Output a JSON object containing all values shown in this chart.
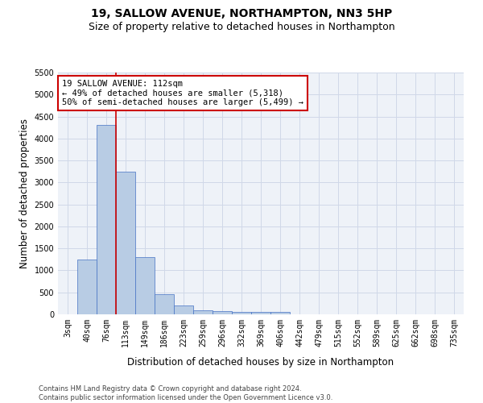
{
  "title_line1": "19, SALLOW AVENUE, NORTHAMPTON, NN3 5HP",
  "title_line2": "Size of property relative to detached houses in Northampton",
  "xlabel": "Distribution of detached houses by size in Northampton",
  "ylabel": "Number of detached properties",
  "footnote": "Contains HM Land Registry data © Crown copyright and database right 2024.\nContains public sector information licensed under the Open Government Licence v3.0.",
  "bar_labels": [
    "3sqm",
    "40sqm",
    "76sqm",
    "113sqm",
    "149sqm",
    "186sqm",
    "223sqm",
    "259sqm",
    "296sqm",
    "332sqm",
    "369sqm",
    "406sqm",
    "442sqm",
    "479sqm",
    "515sqm",
    "552sqm",
    "589sqm",
    "625sqm",
    "662sqm",
    "698sqm",
    "735sqm"
  ],
  "bar_values": [
    0,
    1250,
    4300,
    3250,
    1300,
    450,
    200,
    100,
    75,
    50,
    50,
    50,
    0,
    0,
    0,
    0,
    0,
    0,
    0,
    0,
    0
  ],
  "bar_color": "#b8cce4",
  "bar_edgecolor": "#4472c4",
  "annotation_text": "19 SALLOW AVENUE: 112sqm\n← 49% of detached houses are smaller (5,318)\n50% of semi-detached houses are larger (5,499) →",
  "annotation_box_color": "#ffffff",
  "annotation_border_color": "#cc0000",
  "vline_color": "#cc0000",
  "ylim": [
    0,
    5500
  ],
  "yticks": [
    0,
    500,
    1000,
    1500,
    2000,
    2500,
    3000,
    3500,
    4000,
    4500,
    5000,
    5500
  ],
  "grid_color": "#d0d8e8",
  "bg_color": "#eef2f8",
  "title_fontsize": 10,
  "subtitle_fontsize": 9,
  "axis_label_fontsize": 8.5,
  "tick_fontsize": 7,
  "annotation_fontsize": 7.5,
  "footnote_fontsize": 6
}
